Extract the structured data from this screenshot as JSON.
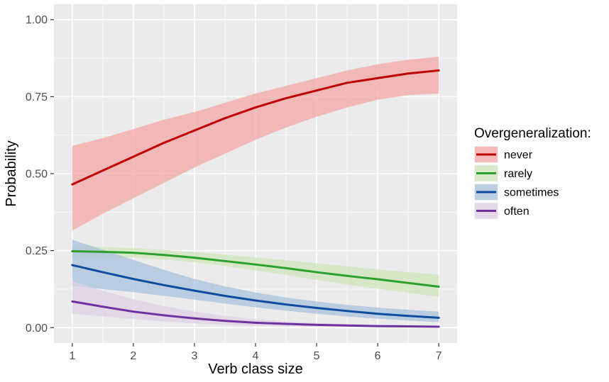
{
  "chart_data": {
    "type": "line",
    "title": "",
    "xlabel": "Verb class size",
    "ylabel": "Probability",
    "xlim": [
      0.7,
      7.3
    ],
    "ylim": [
      -0.05,
      1.05
    ],
    "x_ticks": [
      1,
      2,
      3,
      4,
      5,
      6,
      7
    ],
    "x_tick_labels": [
      "1",
      "2",
      "3",
      "4",
      "5",
      "6",
      "7"
    ],
    "y_ticks": [
      0,
      0.25,
      0.5,
      0.75,
      1
    ],
    "y_tick_labels": [
      "0.00",
      "0.25",
      "0.50",
      "0.75",
      "1.00"
    ],
    "grid": true,
    "background": "#ebebeb",
    "legend": {
      "title": "Overgeneralization:",
      "placement": "right"
    },
    "x": [
      1,
      1.5,
      2,
      2.5,
      3,
      3.5,
      4,
      4.5,
      5,
      5.5,
      6,
      6.5,
      7
    ],
    "series": [
      {
        "name": "never",
        "color": "#c00000",
        "fill": "#f4a6a6",
        "values": [
          0.465,
          0.51,
          0.555,
          0.6,
          0.64,
          0.68,
          0.715,
          0.745,
          0.77,
          0.795,
          0.81,
          0.825,
          0.835
        ],
        "lower": [
          0.315,
          0.37,
          0.42,
          0.47,
          0.52,
          0.565,
          0.61,
          0.65,
          0.685,
          0.715,
          0.74,
          0.755,
          0.76
        ],
        "upper": [
          0.59,
          0.615,
          0.645,
          0.675,
          0.7,
          0.73,
          0.76,
          0.785,
          0.81,
          0.835,
          0.855,
          0.87,
          0.88
        ]
      },
      {
        "name": "rarely",
        "color": "#2ca02c",
        "fill": "#cfe6bb",
        "values": [
          0.248,
          0.246,
          0.243,
          0.236,
          0.227,
          0.216,
          0.205,
          0.193,
          0.18,
          0.168,
          0.157,
          0.145,
          0.133
        ],
        "lower": [
          0.225,
          0.228,
          0.228,
          0.221,
          0.212,
          0.2,
          0.186,
          0.171,
          0.155,
          0.14,
          0.126,
          0.113,
          0.1
        ],
        "upper": [
          0.265,
          0.262,
          0.258,
          0.252,
          0.245,
          0.237,
          0.228,
          0.219,
          0.209,
          0.199,
          0.189,
          0.18,
          0.172
        ]
      },
      {
        "name": "sometimes",
        "color": "#0d4c9e",
        "fill": "#a8c2dc",
        "values": [
          0.203,
          0.18,
          0.158,
          0.138,
          0.12,
          0.103,
          0.088,
          0.075,
          0.064,
          0.054,
          0.045,
          0.038,
          0.032
        ],
        "lower": [
          0.135,
          0.125,
          0.115,
          0.103,
          0.091,
          0.078,
          0.066,
          0.055,
          0.045,
          0.036,
          0.029,
          0.023,
          0.018
        ],
        "upper": [
          0.285,
          0.253,
          0.22,
          0.188,
          0.158,
          0.134,
          0.114,
          0.098,
          0.085,
          0.074,
          0.065,
          0.058,
          0.052
        ]
      },
      {
        "name": "often",
        "color": "#7030a0",
        "fill": "#ddd0e6",
        "values": [
          0.085,
          0.068,
          0.052,
          0.04,
          0.03,
          0.022,
          0.016,
          0.012,
          0.009,
          0.007,
          0.005,
          0.004,
          0.003
        ],
        "lower": [
          0.045,
          0.036,
          0.028,
          0.02,
          0.014,
          0.009,
          0.006,
          0.004,
          0.003,
          0.002,
          0.001,
          0.001,
          0.0005
        ],
        "upper": [
          0.15,
          0.12,
          0.092,
          0.07,
          0.052,
          0.038,
          0.027,
          0.02,
          0.015,
          0.011,
          0.008,
          0.006,
          0.005
        ]
      }
    ]
  }
}
